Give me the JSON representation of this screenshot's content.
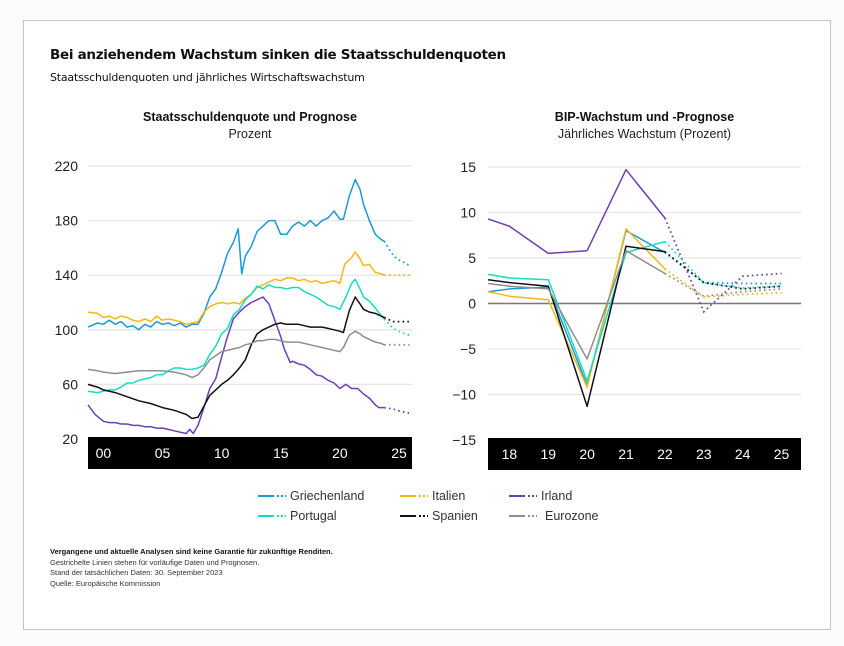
{
  "title": "Bei anziehendem Wachstum sinken die Staatsschuldenquoten",
  "subtitle": "Staatsschuldenquoten und jährliches Wirtschaftswachstum",
  "colors": {
    "Griechenland": "#1a9bd7",
    "Italien": "#f6b814",
    "Irland": "#6b40b4",
    "Portugal": "#16dcc6",
    "Spanien": "#111111",
    "Eurozone": "#8e8e8e",
    "grid": "#e6e6e6",
    "zero_line": "#777777",
    "axis_band": "#000000"
  },
  "legend": [
    {
      "name": "Griechenland",
      "key": "Griechenland"
    },
    {
      "name": "Italien",
      "key": "Italien"
    },
    {
      "name": "Irland",
      "key": "Irland"
    },
    {
      "name": "Portugal",
      "key": "Portugal"
    },
    {
      "name": "Spanien",
      "key": "Spanien"
    },
    {
      "name": "Eurozone",
      "key": "Eurozone"
    }
  ],
  "notes": {
    "disclaimer": "Vergangene und aktuelle Analysen sind keine Garantie für zukünftige Renditen.",
    "line1": "Gestrichelte Linien stehen für vorläufige Daten und Prognosen.",
    "line2": "Stand der tatsächlichen Daten: 30. September 2023",
    "line3": "Quelle: Europäische Kommission"
  },
  "chart_data": [
    {
      "type": "line",
      "title": "Staatsschuldenquote und Prognose",
      "subtitle": "Prozent",
      "xlabel": "",
      "ylabel": "Prozent",
      "xlim": [
        1998.7,
        2026.1
      ],
      "ylim": [
        20,
        220
      ],
      "yticks": [
        220,
        180,
        140,
        100,
        60,
        20
      ],
      "xticks": [
        {
          "v": 2000,
          "label": "00"
        },
        {
          "v": 2005,
          "label": "05"
        },
        {
          "v": 2010,
          "label": "10"
        },
        {
          "v": 2015,
          "label": "15"
        },
        {
          "v": 2020,
          "label": "20"
        },
        {
          "v": 2025,
          "label": "25"
        }
      ],
      "grid": true,
      "forecast_from": 2023.75,
      "series": [
        {
          "name": "Griechenland",
          "x": [
            1998.7,
            1999.5,
            2000,
            2000.5,
            2001,
            2001.5,
            2002,
            2002.5,
            2003,
            2003.5,
            2004,
            2004.5,
            2005,
            2005.5,
            2006,
            2006.5,
            2007,
            2007.5,
            2008,
            2008.5,
            2009,
            2009.5,
            2010,
            2010.5,
            2011,
            2011.4,
            2011.7,
            2012,
            2012.5,
            2013,
            2013.5,
            2014,
            2014.5,
            2015,
            2015.5,
            2016,
            2016.5,
            2017,
            2017.5,
            2018,
            2018.5,
            2019,
            2019.5,
            2020,
            2020.3,
            2020.8,
            2021.3,
            2021.7,
            2022,
            2022.5,
            2023,
            2023.5,
            2023.75
          ],
          "actual": [
            102,
            105,
            104,
            107,
            104,
            106,
            102,
            103,
            100,
            104,
            102,
            106,
            104,
            105,
            103,
            105,
            102,
            104,
            104,
            112,
            124,
            130,
            142,
            156,
            164,
            174,
            141,
            154,
            161,
            172,
            176,
            180,
            180,
            170,
            170,
            176,
            179,
            176,
            180,
            176,
            180,
            182,
            187,
            181,
            181,
            198,
            210,
            203,
            192,
            180,
            170,
            166,
            165
          ],
          "forecast_x": [
            2023.75,
            2024.3,
            2024.8,
            2025.3,
            2025.9
          ],
          "forecast": [
            165,
            157,
            152,
            150,
            147
          ]
        },
        {
          "name": "Italien",
          "x": [
            1998.7,
            1999.5,
            2000,
            2000.5,
            2001,
            2001.5,
            2002,
            2002.5,
            2003,
            2003.5,
            2004,
            2004.5,
            2005,
            2005.5,
            2006,
            2006.5,
            2007,
            2007.5,
            2008,
            2008.5,
            2009,
            2009.5,
            2010,
            2010.5,
            2011,
            2011.5,
            2012,
            2012.5,
            2013,
            2013.5,
            2014,
            2014.5,
            2015,
            2015.5,
            2016,
            2016.5,
            2017,
            2017.5,
            2018,
            2018.5,
            2019,
            2019.5,
            2020,
            2020.4,
            2021,
            2021.3,
            2021.7,
            2022,
            2022.5,
            2023,
            2023.5,
            2023.75
          ],
          "actual": [
            113,
            112,
            109,
            110,
            108,
            110,
            109,
            107,
            106,
            108,
            106,
            110,
            107,
            108,
            107,
            106,
            104,
            105,
            106,
            113,
            117,
            119,
            120,
            119,
            120,
            119,
            123,
            126,
            131,
            133,
            135,
            137,
            136,
            138,
            138,
            136,
            137,
            135,
            136,
            134,
            135,
            136,
            134,
            148,
            153,
            157,
            152,
            147,
            148,
            142,
            141,
            140
          ],
          "forecast_x": [
            2023.75,
            2024.5,
            2025.2,
            2025.9
          ],
          "forecast": [
            140,
            140,
            140,
            140
          ]
        },
        {
          "name": "Irland",
          "x": [
            1998.7,
            1999.3,
            2000,
            2000.5,
            2001,
            2001.5,
            2002,
            2002.5,
            2003,
            2003.5,
            2004,
            2004.5,
            2005,
            2005.5,
            2006,
            2006.5,
            2007,
            2007.3,
            2007.6,
            2008,
            2008.5,
            2009,
            2009.5,
            2010,
            2010.5,
            2011,
            2011.5,
            2012,
            2012.5,
            2013,
            2013.5,
            2014,
            2014.5,
            2015,
            2015.3,
            2015.8,
            2016,
            2016.5,
            2017,
            2017.5,
            2018,
            2018.5,
            2019,
            2019.5,
            2020,
            2020.5,
            2021,
            2021.5,
            2022,
            2022.5,
            2023,
            2023.3,
            2023.75
          ],
          "actual": [
            45,
            38,
            33,
            32,
            32,
            31,
            31,
            30,
            30,
            29,
            29,
            28,
            28,
            27,
            26,
            25,
            24,
            27,
            24,
            30,
            43,
            57,
            64,
            80,
            95,
            108,
            113,
            117,
            120,
            122,
            124,
            119,
            107,
            95,
            86,
            76,
            77,
            75,
            74,
            71,
            67,
            66,
            63,
            61,
            57,
            60,
            57,
            57,
            53,
            50,
            45,
            43,
            43
          ],
          "forecast_x": [
            2023.75,
            2024.5,
            2025.2,
            2025.9
          ],
          "forecast": [
            43,
            42,
            40,
            39
          ]
        },
        {
          "name": "Portugal",
          "x": [
            1998.7,
            1999.5,
            2000,
            2000.5,
            2001,
            2001.5,
            2002,
            2002.5,
            2003,
            2003.5,
            2004,
            2004.5,
            2005,
            2005.5,
            2006,
            2006.5,
            2007,
            2007.5,
            2008,
            2008.5,
            2009,
            2009.5,
            2010,
            2010.5,
            2011,
            2011.5,
            2012,
            2012.5,
            2013,
            2013.5,
            2014,
            2014.5,
            2015,
            2015.5,
            2016,
            2016.5,
            2017,
            2017.5,
            2018,
            2018.5,
            2019,
            2019.5,
            2020,
            2020.5,
            2021,
            2021.3,
            2021.7,
            2022,
            2022.5,
            2023,
            2023.5,
            2023.75
          ],
          "actual": [
            55,
            54,
            55,
            56,
            56,
            58,
            61,
            61,
            63,
            64,
            65,
            67,
            67,
            70,
            72,
            72,
            71,
            71,
            72,
            74,
            82,
            88,
            97,
            101,
            111,
            115,
            122,
            126,
            132,
            130,
            133,
            131,
            131,
            130,
            131,
            131,
            128,
            126,
            124,
            121,
            118,
            117,
            115,
            124,
            134,
            137,
            130,
            124,
            121,
            116,
            110,
            108
          ],
          "forecast_x": [
            2023.75,
            2024.5,
            2025.2,
            2025.9
          ],
          "forecast": [
            108,
            101,
            98,
            96
          ]
        },
        {
          "name": "Spanien",
          "x": [
            1998.7,
            1999.5,
            2000,
            2001,
            2002,
            2003,
            2004,
            2005,
            2006,
            2007,
            2007.5,
            2008,
            2008.5,
            2009,
            2009.5,
            2010,
            2010.5,
            2011,
            2011.5,
            2012,
            2012.5,
            2013,
            2013.5,
            2014,
            2014.5,
            2015,
            2015.5,
            2016,
            2016.5,
            2017,
            2017.5,
            2018,
            2018.5,
            2019,
            2019.5,
            2020,
            2020.3,
            2020.8,
            2021.3,
            2021.7,
            2022,
            2022.5,
            2023,
            2023.5,
            2023.75
          ],
          "actual": [
            60,
            58,
            56,
            54,
            51,
            48,
            46,
            43,
            41,
            38,
            35,
            36,
            44,
            52,
            56,
            60,
            63,
            67,
            72,
            78,
            89,
            97,
            100,
            102,
            104,
            105,
            104,
            104,
            104,
            103,
            102,
            102,
            102,
            101,
            100,
            99,
            98,
            114,
            124,
            119,
            115,
            113,
            112,
            110,
            109
          ],
          "forecast_x": [
            2023.75,
            2024.5,
            2025.2,
            2025.9
          ],
          "forecast": [
            109,
            106,
            106,
            106
          ]
        },
        {
          "name": "Eurozone",
          "x": [
            1998.7,
            1999.5,
            2000,
            2001,
            2002,
            2003,
            2004,
            2005,
            2006,
            2007,
            2007.5,
            2008,
            2008.5,
            2009,
            2009.5,
            2010,
            2010.5,
            2011,
            2011.5,
            2012,
            2012.5,
            2013,
            2013.5,
            2014,
            2014.5,
            2015,
            2015.5,
            2016,
            2016.5,
            2017,
            2017.5,
            2018,
            2018.5,
            2019,
            2019.5,
            2020,
            2020.3,
            2020.8,
            2021.3,
            2021.7,
            2022,
            2022.5,
            2023,
            2023.5,
            2023.75
          ],
          "actual": [
            71,
            70,
            69,
            68,
            69,
            70,
            70,
            70,
            69,
            67,
            65,
            67,
            72,
            78,
            81,
            84,
            85,
            86,
            87,
            89,
            90,
            92,
            92,
            93,
            93,
            92,
            91,
            91,
            91,
            90,
            89,
            88,
            87,
            86,
            85,
            84,
            87,
            96,
            99,
            97,
            95,
            93,
            91,
            90,
            89
          ],
          "forecast_x": [
            2023.75,
            2024.5,
            2025.2,
            2025.9
          ],
          "forecast": [
            89,
            89,
            89,
            89
          ]
        }
      ]
    },
    {
      "type": "line",
      "title": "BIP-Wachstum und -Prognose",
      "subtitle": "Jährliches Wachstum (Prozent)",
      "xlabel": "",
      "ylabel": "Jährliches Wachstum (Prozent)",
      "xlim": [
        17.45,
        25.5
      ],
      "ylim": [
        -15,
        15
      ],
      "yticks": [
        15,
        10,
        5,
        0,
        -5,
        -10,
        -15
      ],
      "ytick_labels": [
        "15",
        "10",
        "5",
        "0",
        "−5",
        "−10",
        "−15"
      ],
      "xticks": [
        {
          "v": 18,
          "label": "18"
        },
        {
          "v": 19,
          "label": "19"
        },
        {
          "v": 20,
          "label": "20"
        },
        {
          "v": 21,
          "label": "21"
        },
        {
          "v": 22,
          "label": "22"
        },
        {
          "v": 23,
          "label": "23"
        },
        {
          "v": 24,
          "label": "24"
        },
        {
          "v": 25,
          "label": "25"
        }
      ],
      "grid": true,
      "series": [
        {
          "name": "Griechenland",
          "x": [
            17.45,
            18,
            19,
            20,
            21,
            22
          ],
          "actual": [
            1.3,
            1.6,
            1.8,
            -9.0,
            8.0,
            5.6
          ],
          "forecast_x": [
            22,
            23,
            24,
            25
          ],
          "forecast": [
            5.6,
            2.3,
            2.2,
            2.2
          ]
        },
        {
          "name": "Italien",
          "x": [
            17.45,
            18,
            19,
            20,
            21,
            22
          ],
          "actual": [
            1.3,
            0.8,
            0.4,
            -9.2,
            8.2,
            3.8
          ],
          "forecast_x": [
            22,
            23,
            24,
            25
          ],
          "forecast": [
            3.8,
            0.7,
            1.0,
            1.2
          ]
        },
        {
          "name": "Irland",
          "x": [
            17.45,
            18,
            19,
            20,
            21,
            22
          ],
          "actual": [
            9.3,
            8.5,
            5.5,
            5.8,
            14.7,
            9.4
          ],
          "forecast_x": [
            22,
            23,
            24,
            25
          ],
          "forecast": [
            9.4,
            -0.9,
            3.0,
            3.3
          ]
        },
        {
          "name": "Portugal",
          "x": [
            17.45,
            18,
            19,
            20,
            21,
            22
          ],
          "actual": [
            3.2,
            2.8,
            2.6,
            -8.5,
            5.6,
            6.8
          ],
          "forecast_x": [
            22,
            23,
            24,
            25
          ],
          "forecast": [
            6.8,
            2.3,
            1.7,
            1.9
          ]
        },
        {
          "name": "Spanien",
          "x": [
            17.45,
            18,
            19,
            20,
            21,
            22
          ],
          "actual": [
            2.6,
            2.3,
            1.9,
            -11.3,
            6.3,
            5.7
          ],
          "forecast_x": [
            22,
            23,
            24,
            25
          ],
          "forecast": [
            5.7,
            2.3,
            1.6,
            1.9
          ]
        },
        {
          "name": "Eurozone",
          "x": [
            17.45,
            18,
            19,
            20,
            21,
            22
          ],
          "actual": [
            2.2,
            1.9,
            1.6,
            -6.1,
            5.8,
            3.3
          ],
          "forecast_x": [
            22,
            23,
            24,
            25
          ],
          "forecast": [
            3.3,
            0.8,
            1.3,
            1.6
          ]
        }
      ]
    }
  ]
}
